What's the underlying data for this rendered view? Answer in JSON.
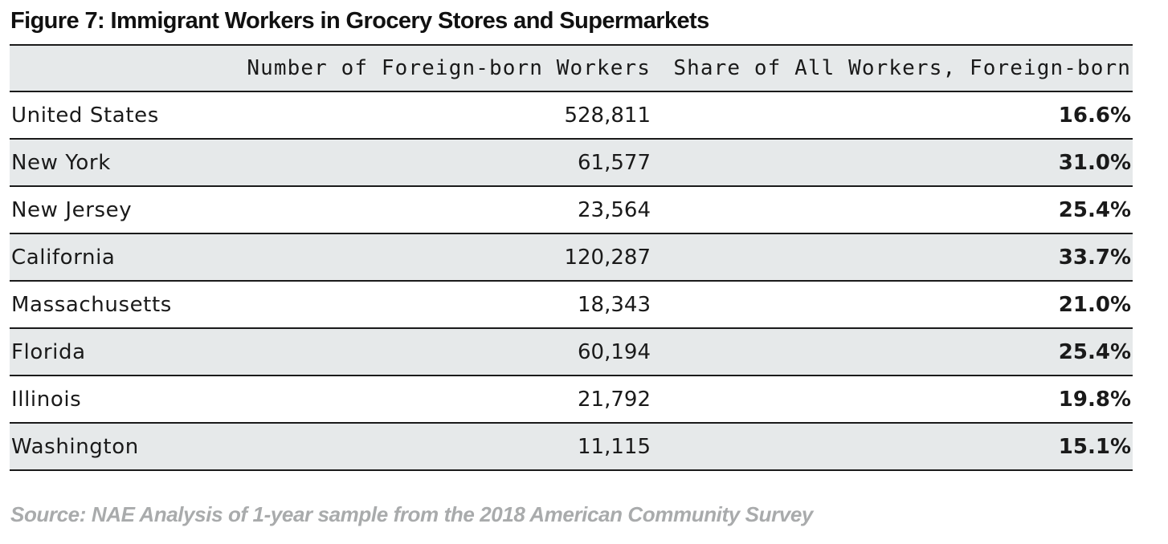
{
  "title": "Figure 7: Immigrant Workers in Grocery Stores and Supermarkets",
  "source": "Source: NAE Analysis of 1-year sample from the 2018 American Community Survey",
  "chart_data": {
    "type": "table",
    "title": "Figure 7: Immigrant Workers in Grocery Stores and Supermarkets",
    "columns": [
      "",
      "Number of Foreign-born Workers",
      "Share of All Workers, Foreign-born"
    ],
    "rows": [
      {
        "state": "United States",
        "workers": "528,811",
        "share": "16.6%"
      },
      {
        "state": "New York",
        "workers": "61,577",
        "share": "31.0%"
      },
      {
        "state": "New Jersey",
        "workers": "23,564",
        "share": "25.4%"
      },
      {
        "state": "California",
        "workers": "120,287",
        "share": "33.7%"
      },
      {
        "state": "Massachusetts",
        "workers": "18,343",
        "share": "21.0%"
      },
      {
        "state": "Florida",
        "workers": "60,194",
        "share": "25.4%"
      },
      {
        "state": "Illinois",
        "workers": "21,792",
        "share": "19.8%"
      },
      {
        "state": "Washington",
        "workers": "11,115",
        "share": "15.1%"
      }
    ]
  },
  "colors": {
    "row_shade": "#e6e9ea",
    "rule": "#1a1a1a",
    "source_text": "#a9abac"
  }
}
